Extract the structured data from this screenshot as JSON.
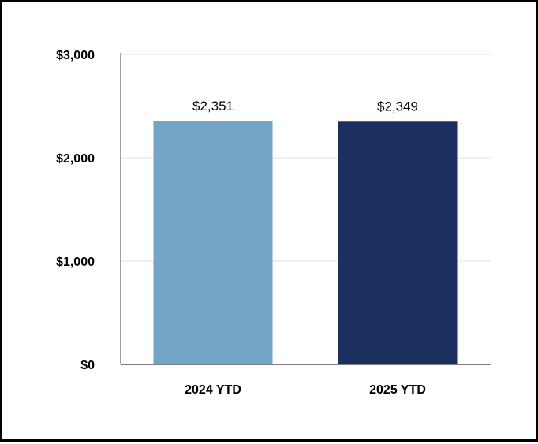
{
  "chart_data": {
    "type": "bar",
    "title": "",
    "xlabel": "",
    "ylabel": "",
    "categories": [
      "2024 YTD",
      "2025 YTD"
    ],
    "values": [
      2351,
      2349
    ],
    "data_labels": [
      "$2,351",
      "$2,349"
    ],
    "ylim": [
      0,
      3000
    ],
    "yticks": [
      0,
      1000,
      2000,
      3000
    ],
    "ytick_labels": [
      "$0",
      "$1,000",
      "$2,000",
      "$3,000"
    ],
    "grid": true,
    "legend": "none",
    "colors": [
      "#73A5C6",
      "#1D2F5E"
    ],
    "gridline_color": "#e6e6e6",
    "axis_color": "#808080"
  }
}
